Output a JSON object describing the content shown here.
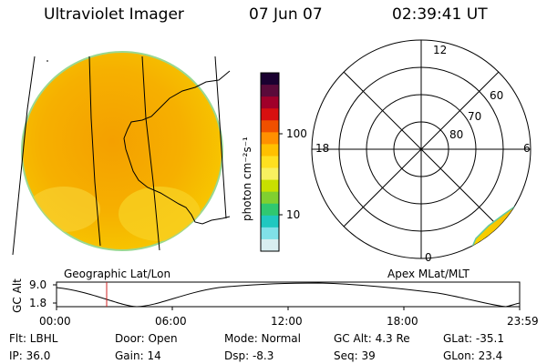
{
  "header": {
    "instrument": "Ultraviolet Imager",
    "date": "07 Jun 07",
    "time": "02:39:41 UT"
  },
  "left_panel": {
    "label": "Geographic Lat/Lon"
  },
  "right_panel": {
    "label": "Apex MLat/MLT",
    "mlt_labels": {
      "top": "12",
      "left": "18",
      "right": "6",
      "bottom": "0"
    },
    "lat_labels": [
      "60",
      "70",
      "80"
    ]
  },
  "colorbar": {
    "unit_label": "photon cm⁻²s⁻¹",
    "ticks": [
      "100",
      "10"
    ],
    "colors": [
      "#1a0030",
      "#5a0a3a",
      "#a0002a",
      "#d81010",
      "#f05000",
      "#ff9000",
      "#ffc000",
      "#ffe020",
      "#f8f060",
      "#c8e000",
      "#80d030",
      "#30c870",
      "#20c8c0",
      "#80e0e8",
      "#d8eef0"
    ]
  },
  "timeline": {
    "axis_label": "GC Alt",
    "y_ticks": [
      "9.0",
      "1.8"
    ],
    "x_ticks": [
      "00:00",
      "06:00",
      "12:00",
      "18:00",
      "23:59"
    ],
    "marker_color": "#d02020"
  },
  "info": {
    "filter": "Flt: LBHL",
    "ip": "IP: 36.0",
    "door": "Door: Open",
    "gain": "Gain: 14",
    "mode": "Mode: Normal",
    "dsp": "Dsp:    -8.3",
    "gc_alt": "GC Alt: 4.3 Re",
    "seq": "Seq: 39",
    "glat": "GLat:  -35.1",
    "glon": "GLon:  23.4"
  }
}
